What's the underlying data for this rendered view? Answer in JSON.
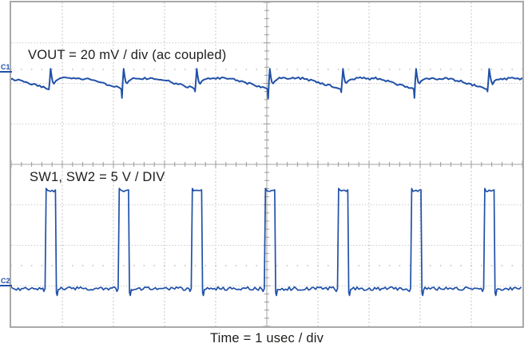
{
  "figure": {
    "background": "#ffffff",
    "trace_color": "#2151a8",
    "grid_color": "#b6b6b6",
    "center_line_color": "#a3a3a3",
    "tick_color": "#9a9a9a",
    "ref_dot_color": "#bdbdbd",
    "border_color": "#a9a9a9",
    "text_color": "#1d1d1b"
  },
  "labels": {
    "ch1_scale": "VOUT = 20 mV / div (ac coupled)",
    "ch2_scale": "SW1, SW2 = 5 V / DIV",
    "time_scale": "Time = 1 usec / div",
    "ch1_marker": "C1",
    "ch2_marker": "C2"
  },
  "chart_data": {
    "type": "line",
    "subtype": "oscilloscope",
    "xlabel": "Time = 1 usec / div",
    "x_per_div": "1 usec",
    "x_divisions": 10,
    "y_divisions": 8,
    "minor_ticks_per_div": 5,
    "grid": "dotted, solid center crosshair lines with 0.2-div minor ticks",
    "ref_dot_rows_div": [
      1.655,
      6.5
    ],
    "series": [
      {
        "id": "C1",
        "name": "VOUT",
        "volts_per_div": "20 mV",
        "coupling": "ac coupled",
        "waveform": "switching ripple: slow droop then sharp recovery spike each switching cycle",
        "period_div": 1.43,
        "first_peak_div": 0.77,
        "baseline_div": 1.89,
        "overshoot_peak_div": 1.64,
        "post_peak_dip_div": 2.01,
        "droop_min_div": 2.11,
        "edge_spike_depth_div": [
          2.15,
          2.36,
          2.2,
          2.37,
          2.22,
          2.36,
          2.2,
          2.16
        ],
        "noise_div": 0.03,
        "ripple_est_mVpp": 9.5
      },
      {
        "id": "C2",
        "name": "SW1, SW2",
        "volts_per_div": "5 V",
        "waveform": "narrow positive switch-node pulses",
        "first_edge_div": 0.67,
        "period_div": 1.43,
        "pulse_width_div": 0.195,
        "pulse_count": 7,
        "low_div": 7.07,
        "high_div": 4.63,
        "undershoot_div": 7.24,
        "noise_div": 0.044,
        "amplitude_est_V": 12.2
      }
    ]
  }
}
